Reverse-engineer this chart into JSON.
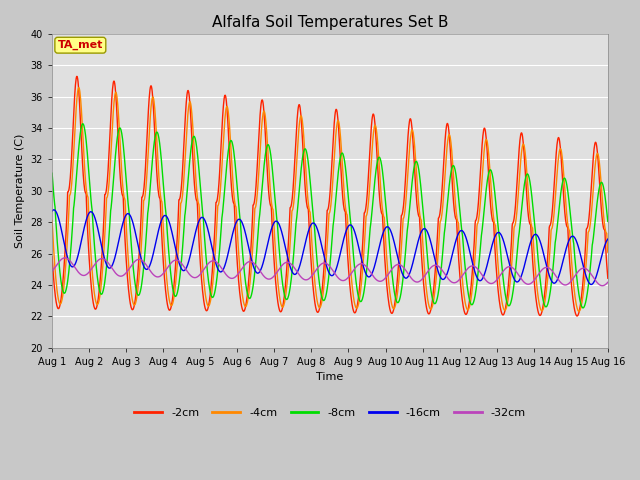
{
  "title": "Alfalfa Soil Temperatures Set B",
  "xlabel": "Time",
  "ylabel": "Soil Temperature (C)",
  "ylim": [
    20,
    40
  ],
  "xlim": [
    0,
    15
  ],
  "fig_width": 6.4,
  "fig_height": 4.8,
  "dpi": 100,
  "background_color": "#c8c8c8",
  "plot_bg_color": "#e0e0e0",
  "annotation_text": "TA_met",
  "annotation_box_facecolor": "#ffff88",
  "annotation_text_color": "#cc0000",
  "annotation_border_color": "#999900",
  "xtick_labels": [
    "Aug 1",
    "Aug 2",
    "Aug 3",
    "Aug 4",
    "Aug 5",
    "Aug 6",
    "Aug 7",
    "Aug 8",
    "Aug 9",
    "Aug 10",
    "Aug 11",
    "Aug 12",
    "Aug 13",
    "Aug 14",
    "Aug 15",
    "Aug 16"
  ],
  "ytick_values": [
    20,
    22,
    24,
    26,
    28,
    30,
    32,
    34,
    36,
    38,
    40
  ],
  "series_colors": [
    "#ff2200",
    "#ff8800",
    "#00dd00",
    "#0000ee",
    "#bb44bb"
  ],
  "series_labels": [
    "-2cm",
    "-4cm",
    "-8cm",
    "-16cm",
    "-32cm"
  ],
  "grid_color": "#ffffff",
  "grid_linewidth": 0.8,
  "line_width": 1.0,
  "title_fontsize": 11,
  "axis_label_fontsize": 8,
  "tick_fontsize": 7,
  "legend_fontsize": 8
}
